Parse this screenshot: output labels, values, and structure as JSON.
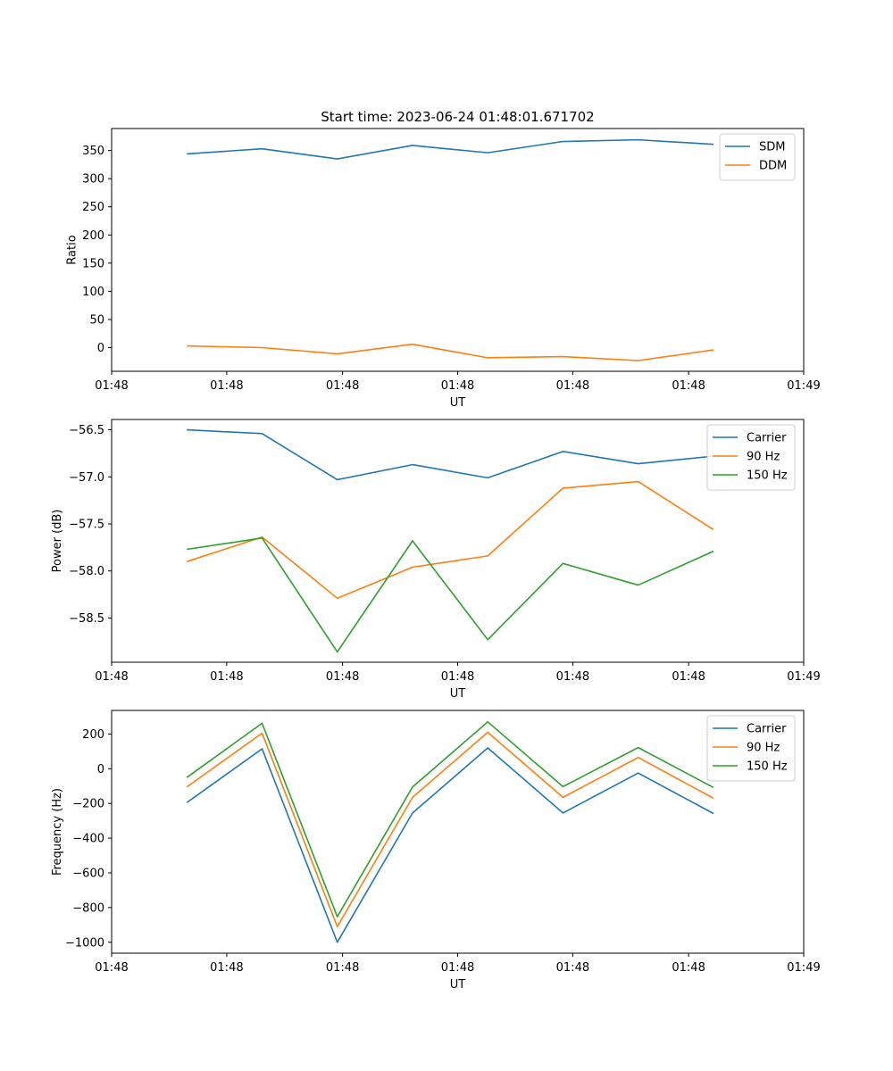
{
  "figure": {
    "title": "Start time: 2023-06-24 01:48:01.671702"
  },
  "colors": {
    "blue": "#1f77b4",
    "orange": "#ff7f0e",
    "green": "#2ca02c"
  },
  "chart_data": [
    {
      "type": "line",
      "title": "Start time: 2023-06-24 01:48:01.671702",
      "xlabel": "UT",
      "ylabel": "Ratio",
      "x": [
        1,
        2,
        3,
        4,
        5,
        6,
        7,
        8
      ],
      "xlim": [
        0,
        9.2
      ],
      "x_ticks": [
        {
          "value": 0,
          "label": "01:48"
        },
        {
          "value": 1.53,
          "label": "01:48"
        },
        {
          "value": 3.07,
          "label": "01:48"
        },
        {
          "value": 4.6,
          "label": "01:48"
        },
        {
          "value": 6.13,
          "label": "01:48"
        },
        {
          "value": 7.67,
          "label": "01:48"
        },
        {
          "value": 9.2,
          "label": "01:49"
        }
      ],
      "ylim": [
        -42,
        389
      ],
      "y_ticks": [
        0,
        50,
        100,
        150,
        200,
        250,
        300,
        350
      ],
      "legend": "upper right",
      "series": [
        {
          "name": "SDM",
          "color": "#1f77b4",
          "values": [
            344,
            353,
            335,
            359,
            346,
            366,
            369,
            361
          ]
        },
        {
          "name": "DDM",
          "color": "#ff7f0e",
          "values": [
            3,
            0,
            -11,
            6,
            -18,
            -16,
            -23,
            -4
          ]
        }
      ]
    },
    {
      "type": "line",
      "title": "",
      "xlabel": "UT",
      "ylabel": "Power (dB)",
      "x": [
        1,
        2,
        3,
        4,
        5,
        6,
        7,
        8
      ],
      "xlim": [
        0,
        9.2
      ],
      "x_ticks": [
        {
          "value": 0,
          "label": "01:48"
        },
        {
          "value": 1.53,
          "label": "01:48"
        },
        {
          "value": 3.07,
          "label": "01:48"
        },
        {
          "value": 4.6,
          "label": "01:48"
        },
        {
          "value": 6.13,
          "label": "01:48"
        },
        {
          "value": 7.67,
          "label": "01:48"
        },
        {
          "value": 9.2,
          "label": "01:49"
        }
      ],
      "ylim": [
        -58.97,
        -56.39
      ],
      "y_ticks": [
        -58.5,
        -58.0,
        -57.5,
        -57.0,
        -56.5
      ],
      "y_tick_labels": [
        "−58.5",
        "−58.0",
        "−57.5",
        "−57.0",
        "−56.5"
      ],
      "legend": "upper right",
      "series": [
        {
          "name": "Carrier",
          "color": "#1f77b4",
          "values": [
            -56.5,
            -56.54,
            -57.03,
            -56.87,
            -57.01,
            -56.73,
            -56.86,
            -56.78
          ]
        },
        {
          "name": "90 Hz",
          "color": "#ff7f0e",
          "values": [
            -57.9,
            -57.64,
            -58.29,
            -57.96,
            -57.84,
            -57.12,
            -57.05,
            -57.56
          ]
        },
        {
          "name": "150 Hz",
          "color": "#2ca02c",
          "values": [
            -57.77,
            -57.65,
            -58.86,
            -57.68,
            -58.73,
            -57.92,
            -58.15,
            -57.79
          ]
        }
      ]
    },
    {
      "type": "line",
      "title": "",
      "xlabel": "UT",
      "ylabel": "Frequency (Hz)",
      "x": [
        1,
        2,
        3,
        4,
        5,
        6,
        7,
        8
      ],
      "xlim": [
        0,
        9.2
      ],
      "x_ticks": [
        {
          "value": 0,
          "label": "01:48"
        },
        {
          "value": 1.53,
          "label": "01:48"
        },
        {
          "value": 3.07,
          "label": "01:48"
        },
        {
          "value": 4.6,
          "label": "01:48"
        },
        {
          "value": 6.13,
          "label": "01:48"
        },
        {
          "value": 7.67,
          "label": "01:48"
        },
        {
          "value": 9.2,
          "label": "01:49"
        }
      ],
      "ylim": [
        -1063,
        336
      ],
      "y_ticks": [
        -1000,
        -800,
        -600,
        -400,
        -200,
        0,
        200
      ],
      "y_tick_labels": [
        "−1000",
        "−800",
        "−600",
        "−400",
        "−200",
        "0",
        "200"
      ],
      "legend": "upper right",
      "series": [
        {
          "name": "Carrier",
          "color": "#1f77b4",
          "values": [
            -195,
            115,
            -1000,
            -255,
            120,
            -255,
            -25,
            -258
          ]
        },
        {
          "name": "90 Hz",
          "color": "#ff7f0e",
          "values": [
            -105,
            205,
            -910,
            -165,
            210,
            -165,
            65,
            -170
          ]
        },
        {
          "name": "150 Hz",
          "color": "#2ca02c",
          "values": [
            -50,
            262,
            -853,
            -105,
            270,
            -103,
            122,
            -108
          ]
        }
      ]
    }
  ]
}
